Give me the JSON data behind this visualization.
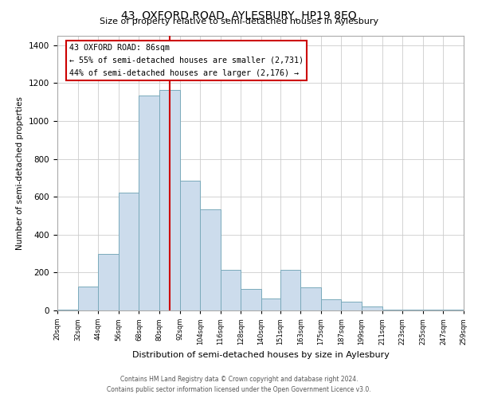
{
  "title": "43, OXFORD ROAD, AYLESBURY, HP19 8EQ",
  "subtitle": "Size of property relative to semi-detached houses in Aylesbury",
  "xlabel": "Distribution of semi-detached houses by size in Aylesbury",
  "ylabel": "Number of semi-detached properties",
  "bar_color": "#ccdcec",
  "bar_edge_color": "#7aaabb",
  "bin_edges": [
    20,
    32,
    44,
    56,
    68,
    80,
    92,
    104,
    116,
    128,
    140,
    151,
    163,
    175,
    187,
    199,
    211,
    223,
    235,
    247,
    259
  ],
  "bin_labels": [
    "20sqm",
    "32sqm",
    "44sqm",
    "56sqm",
    "68sqm",
    "80sqm",
    "92sqm",
    "104sqm",
    "116sqm",
    "128sqm",
    "140sqm",
    "151sqm",
    "163sqm",
    "175sqm",
    "187sqm",
    "199sqm",
    "211sqm",
    "223sqm",
    "235sqm",
    "247sqm",
    "259sqm"
  ],
  "bar_heights": [
    5,
    125,
    300,
    620,
    1135,
    1165,
    685,
    535,
    215,
    115,
    65,
    215,
    120,
    60,
    45,
    20,
    5,
    5,
    5,
    5
  ],
  "property_value": 86,
  "annotation_title": "43 OXFORD ROAD: 86sqm",
  "annotation_line1": "← 55% of semi-detached houses are smaller (2,731)",
  "annotation_line2": "44% of semi-detached houses are larger (2,176) →",
  "vline_color": "#cc0000",
  "annotation_box_color": "#ffffff",
  "annotation_box_edge": "#cc0000",
  "footer1": "Contains HM Land Registry data © Crown copyright and database right 2024.",
  "footer2": "Contains public sector information licensed under the Open Government Licence v3.0.",
  "ylim": [
    0,
    1450
  ],
  "yticks": [
    0,
    200,
    400,
    600,
    800,
    1000,
    1200,
    1400
  ],
  "background_color": "#ffffff",
  "grid_color": "#cccccc"
}
